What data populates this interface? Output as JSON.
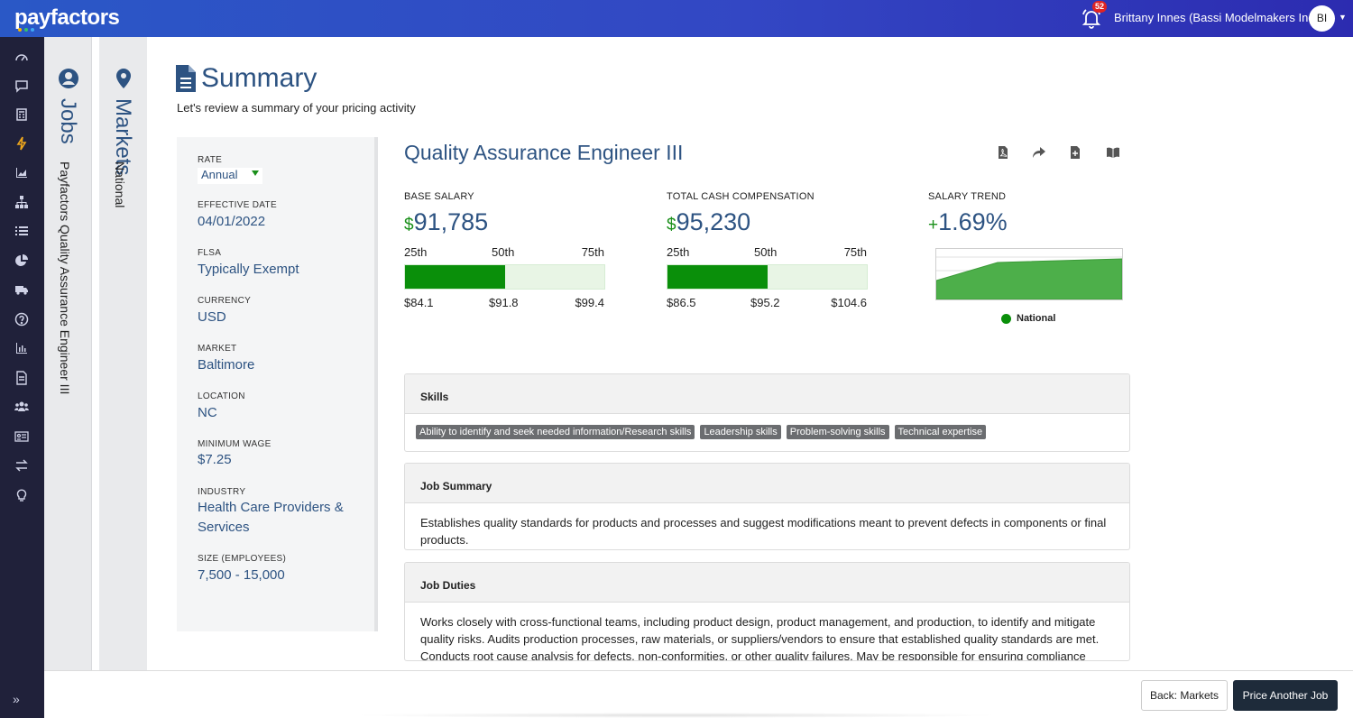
{
  "app": {
    "logo_text": "payfactors",
    "notification_count": "52",
    "user_name": "Brittany Innes (Bassi Modelmakers Inc.)",
    "user_initials": "BI",
    "brand_color": "#2d5382",
    "accent_green": "#0a8f0a"
  },
  "rail": {
    "icons": [
      "dashboard-icon",
      "chat-icon",
      "calculator-icon",
      "lightning-icon",
      "area-chart-icon",
      "org-chart-icon",
      "list-icon",
      "pie-chart-icon",
      "truck-icon",
      "help-icon",
      "bar-chart-icon",
      "document-icon",
      "users-icon",
      "id-card-icon",
      "transfer-icon",
      "lightbulb-icon"
    ],
    "active_index": 3
  },
  "steps": {
    "jobs": {
      "title": "Jobs",
      "subtitle": "Payfactors Quality Assurance Engineer III"
    },
    "markets": {
      "title": "Markets",
      "subtitle": "National"
    }
  },
  "summary": {
    "title": "Summary",
    "subtitle": "Let's review a summary of your pricing activity"
  },
  "info": {
    "rate_label": "RATE",
    "rate_value": "Annual",
    "effective_date_label": "EFFECTIVE DATE",
    "effective_date_value": "04/01/2022",
    "flsa_label": "FLSA",
    "flsa_value": "Typically Exempt",
    "currency_label": "CURRENCY",
    "currency_value": "USD",
    "market_label": "MARKET",
    "market_value": "Baltimore",
    "location_label": "LOCATION",
    "location_value": "NC",
    "minimum_wage_label": "MINIMUM WAGE",
    "minimum_wage_value": "$7.25",
    "industry_label": "INDUSTRY",
    "industry_value": "Health Care Providers & Services",
    "size_label": "SIZE (EMPLOYEES)",
    "size_value": "7,500 - 15,000"
  },
  "job": {
    "title": "Quality Assurance Engineer III",
    "tools": [
      "pdf-icon",
      "share-icon",
      "file-add-icon",
      "book-icon"
    ]
  },
  "metrics": {
    "base": {
      "label": "BASE SALARY",
      "currency": "$",
      "value": "91,785",
      "p25_label": "25th",
      "p50_label": "50th",
      "p75_label": "75th",
      "p25": "$84.1",
      "p50": "$91.8",
      "p75": "$99.4",
      "fill_fraction": 0.5
    },
    "tcc": {
      "label": "TOTAL CASH COMPENSATION",
      "currency": "$",
      "value": "95,230",
      "p25_label": "25th",
      "p50_label": "50th",
      "p75_label": "75th",
      "p25": "$86.5",
      "p50": "$95.2",
      "p75": "$104.6",
      "fill_fraction": 0.5
    },
    "trend": {
      "label": "SALARY TREND",
      "sign": "+",
      "value": "1.69%",
      "legend": "National"
    }
  },
  "cards": {
    "skills": {
      "header": "Skills",
      "tags": [
        "Ability to identify and seek needed information/Research skills",
        "Leadership skills",
        "Problem-solving skills",
        "Technical expertise"
      ]
    },
    "job_summary": {
      "header": "Job Summary",
      "body": "Establishes quality standards for products and processes and suggest modifications meant to prevent defects in components or final products."
    },
    "job_duties": {
      "header": "Job Duties",
      "body": "Works closely with cross-functional teams, including product design, product management, and production, to identify and mitigate quality risks. Audits production processes, raw materials, or suppliers/vendors to ensure that established quality standards are met. Conducts root cause analysis for defects, non-conformities, or other quality failures. May be responsible for ensuring compliance"
    }
  },
  "footer": {
    "back_label": "Back: Markets",
    "price_label": "Price Another Job"
  }
}
